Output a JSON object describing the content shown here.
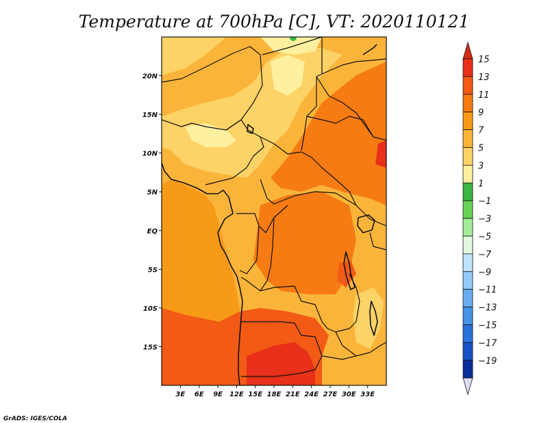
{
  "title": "Temperature at 700hPa [C], VT: 2020110121",
  "credit": "GrADS: IGES/COLA",
  "map": {
    "lon_range": [
      0,
      36
    ],
    "lat_range": [
      -20,
      25
    ],
    "lat_labels": [
      {
        "lat": 20,
        "text": "20N"
      },
      {
        "lat": 15,
        "text": "15N"
      },
      {
        "lat": 10,
        "text": "10N"
      },
      {
        "lat": 5,
        "text": "5N"
      },
      {
        "lat": 0,
        "text": "EQ"
      },
      {
        "lat": -5,
        "text": "5S"
      },
      {
        "lat": -10,
        "text": "10S"
      },
      {
        "lat": -15,
        "text": "15S"
      }
    ],
    "lon_labels": [
      {
        "lon": 3,
        "text": "3E"
      },
      {
        "lon": 6,
        "text": "6E"
      },
      {
        "lon": 9,
        "text": "9E"
      },
      {
        "lon": 12,
        "text": "12E"
      },
      {
        "lon": 15,
        "text": "15E"
      },
      {
        "lon": 18,
        "text": "18E"
      },
      {
        "lon": 21,
        "text": "21E"
      },
      {
        "lon": 24,
        "text": "24E"
      },
      {
        "lon": 27,
        "text": "27E"
      },
      {
        "lon": 30,
        "text": "30E"
      },
      {
        "lon": 33,
        "text": "33E"
      }
    ]
  },
  "colorbar": {
    "levels": [
      15,
      13,
      11,
      9,
      7,
      5,
      3,
      1,
      -1,
      -3,
      -5,
      -7,
      -9,
      -11,
      -13,
      -15,
      -17,
      -19
    ],
    "labels": [
      "15",
      "13",
      "11",
      "9",
      "7",
      "5",
      "3",
      "1",
      "−1",
      "−3",
      "−5",
      "−7",
      "−9",
      "−11",
      "−13",
      "−15",
      "−17",
      "−19"
    ],
    "colors_top_to_bottom": [
      "#e8301a",
      "#f25a16",
      "#f57b12",
      "#f79a18",
      "#fab43a",
      "#fdd266",
      "#fff0a0",
      "#3cb446",
      "#68d255",
      "#a4ec9a",
      "#e1f9e0",
      "#bfe3fc",
      "#93cbf7",
      "#6aaef0",
      "#4793e6",
      "#2a72d8",
      "#1852c4",
      "#0b2e98"
    ],
    "top_arrow_color": "#d42a18",
    "bottom_arrow_color": "#dcdcf4"
  },
  "fields": {
    "ocean": "#f79a18",
    "land_base": "#fab43a",
    "hot": "#f57b12",
    "hotter": "#f25a16",
    "hottest": "#e8301a",
    "cool": "#fdd266",
    "coolest": "#fff0a0",
    "green": "#3cb446"
  }
}
